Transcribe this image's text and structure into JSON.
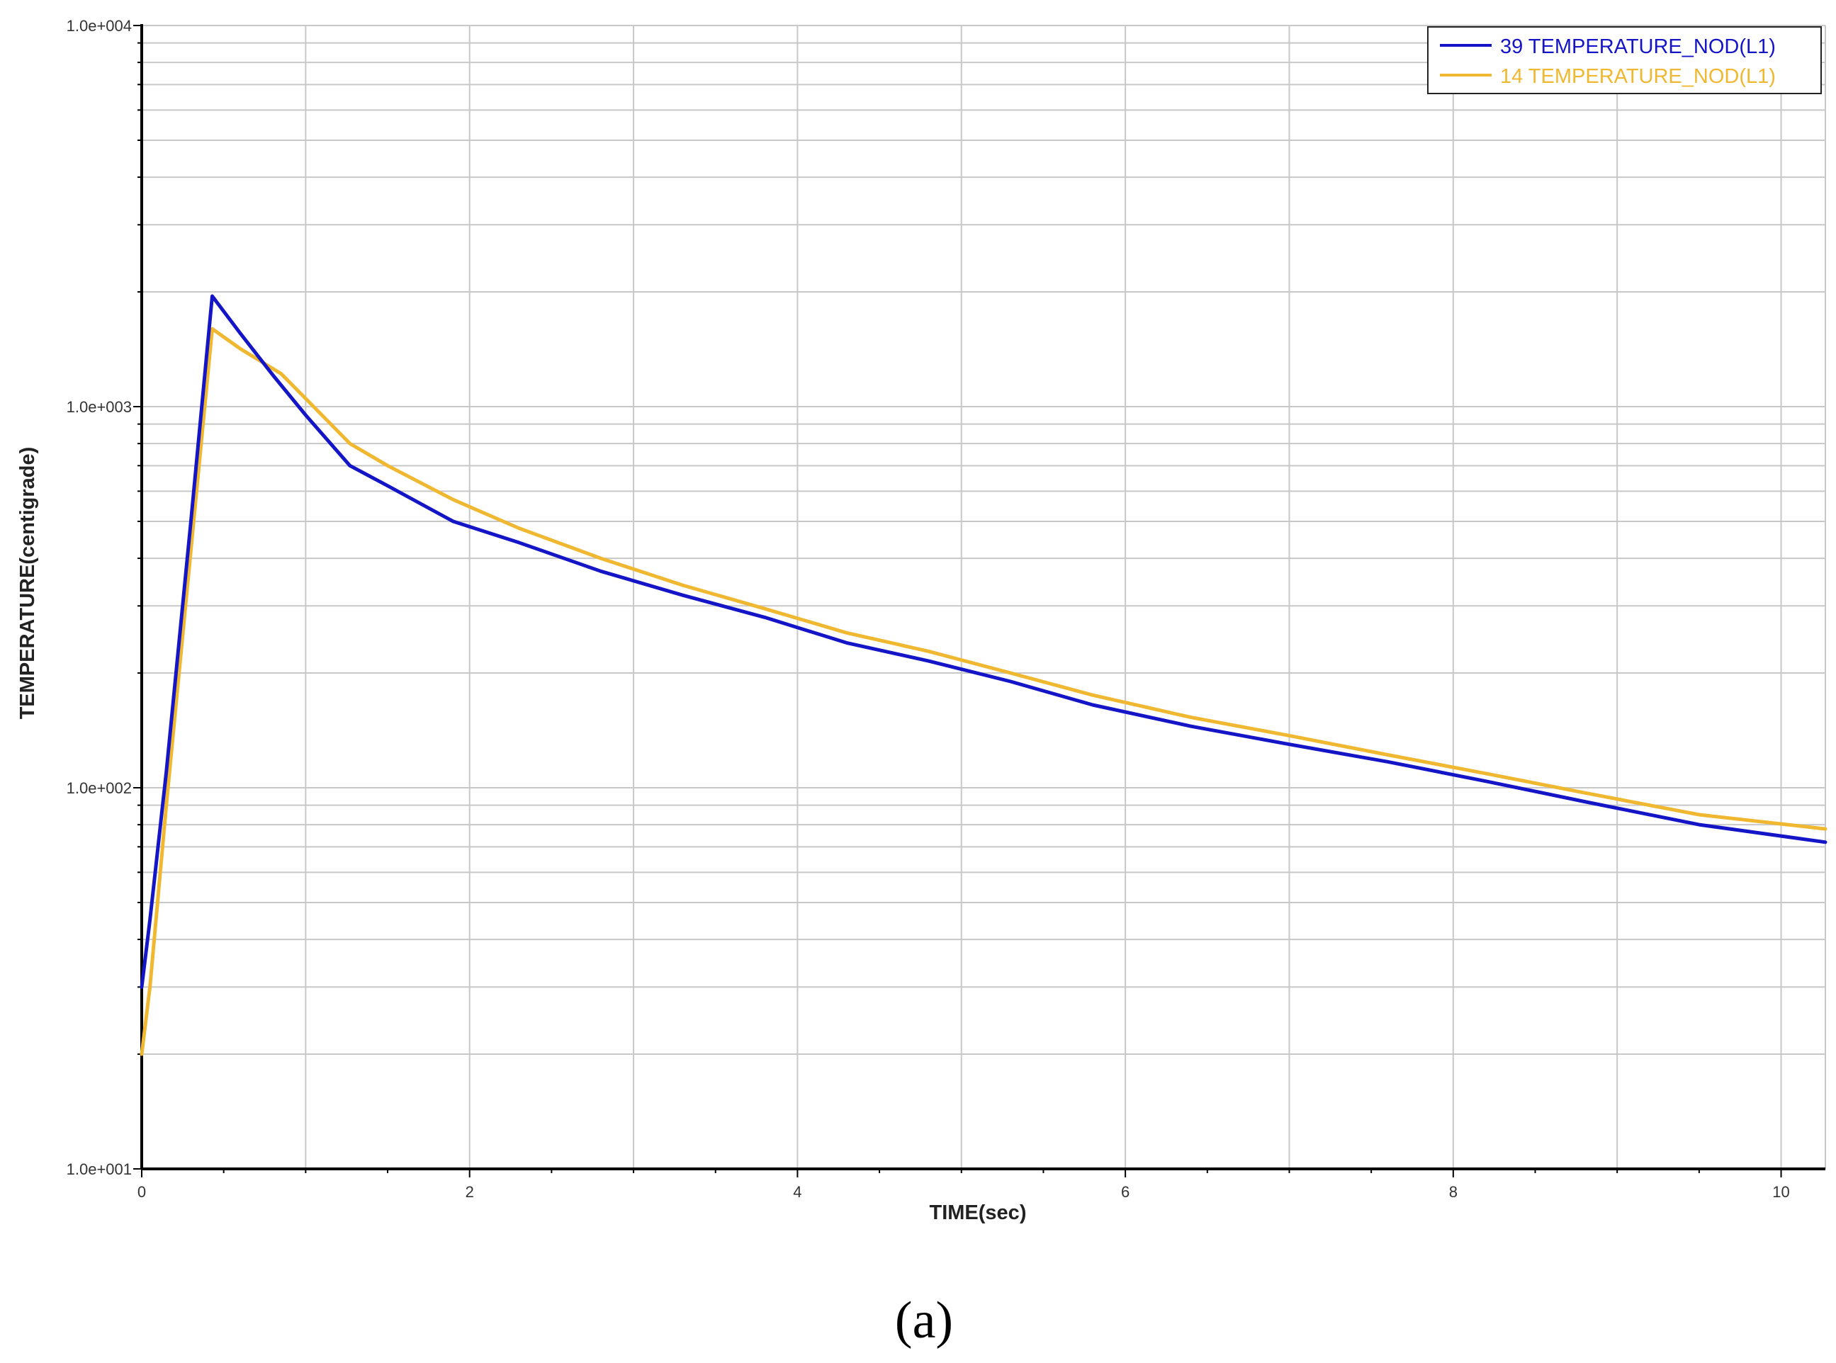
{
  "panel_label": "(a)",
  "chart_data": {
    "type": "line",
    "xlabel": "TIME(sec)",
    "ylabel": "TEMPERATURE(centigrade)",
    "xlim": [
      0,
      10.27
    ],
    "ylim": [
      10,
      10000
    ],
    "y_scale": "log",
    "grid": true,
    "legend_position": "top-right",
    "x_ticks": [
      0,
      2,
      4,
      6,
      8,
      10
    ],
    "x_tick_labels": [
      "0",
      "2",
      "4",
      "6",
      "8",
      "10"
    ],
    "y_ticks": [
      10,
      100,
      1000,
      10000
    ],
    "y_tick_labels": [
      "1.0e+001",
      "1.0e+002",
      "1.0e+003",
      "1.0e+004"
    ],
    "series": [
      {
        "name": "39 TEMPERATURE_NOD(L1)",
        "color": "#1515c8",
        "x": [
          0,
          0.05,
          0.15,
          0.3,
          0.43,
          0.6,
          0.8,
          1.0,
          1.27,
          1.5,
          1.9,
          2.3,
          2.8,
          3.3,
          3.8,
          4.3,
          4.8,
          5.3,
          5.8,
          6.4,
          7.0,
          7.6,
          8.2,
          8.8,
          9.5,
          10.27
        ],
        "y": [
          30,
          45,
          110,
          500,
          1950,
          1560,
          1210,
          950,
          700,
          620,
          500,
          440,
          370,
          320,
          280,
          240,
          215,
          190,
          165,
          145,
          130,
          117,
          104,
          92,
          80,
          72
        ]
      },
      {
        "name": "14 TEMPERATURE_NOD(L1)",
        "color": "#f0b830",
        "x": [
          0,
          0.05,
          0.15,
          0.3,
          0.43,
          0.6,
          0.85,
          1.0,
          1.27,
          1.5,
          1.9,
          2.3,
          2.8,
          3.3,
          3.8,
          4.3,
          4.8,
          5.3,
          5.8,
          6.4,
          7.0,
          7.6,
          8.2,
          8.8,
          9.5,
          10.27
        ],
        "y": [
          20,
          30,
          90,
          420,
          1600,
          1420,
          1220,
          1050,
          800,
          700,
          570,
          480,
          400,
          340,
          295,
          255,
          228,
          200,
          175,
          153,
          137,
          122,
          109,
          97,
          85,
          78
        ]
      }
    ]
  }
}
